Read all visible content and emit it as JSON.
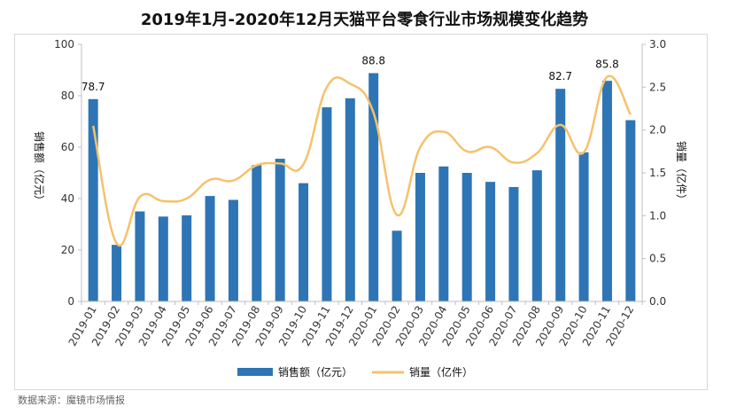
{
  "source_note": "数据来源：魔镜市场情报",
  "chart_data": {
    "type": "bar+line",
    "title": "2019年1月-2020年12月天猫平台零食行业市场规模变化趋势",
    "categories": [
      "2019-01",
      "2019-02",
      "2019-03",
      "2019-04",
      "2019-05",
      "2019-06",
      "2019-07",
      "2019-08",
      "2019-09",
      "2019-10",
      "2019-11",
      "2019-12",
      "2020-01",
      "2020-02",
      "2020-03",
      "2020-04",
      "2020-05",
      "2020-06",
      "2020-07",
      "2020-08",
      "2020-09",
      "2020-10",
      "2020-11",
      "2020-12"
    ],
    "series": [
      {
        "name": "销售额（亿元）",
        "type": "bar",
        "axis": "left",
        "color": "#2e75b6",
        "values": [
          78.7,
          22,
          35,
          33,
          33.5,
          41,
          39.5,
          53,
          55.5,
          46,
          75.5,
          79,
          88.8,
          27.5,
          50,
          52.5,
          50,
          46.5,
          44.5,
          51,
          82.7,
          58,
          85.8,
          70.5
        ]
      },
      {
        "name": "销量（亿件）",
        "type": "line",
        "axis": "right",
        "color": "#f5c26b",
        "values": [
          2.05,
          0.68,
          1.22,
          1.17,
          1.2,
          1.42,
          1.41,
          1.59,
          1.61,
          1.6,
          2.5,
          2.54,
          2.2,
          1.01,
          1.8,
          1.98,
          1.75,
          1.8,
          1.62,
          1.73,
          2.06,
          1.74,
          2.62,
          2.18
        ]
      }
    ],
    "data_labels": [
      {
        "index": 0,
        "text": "78.7"
      },
      {
        "index": 12,
        "text": "88.8"
      },
      {
        "index": 20,
        "text": "82.7"
      },
      {
        "index": 22,
        "text": "85.8"
      }
    ],
    "y_left": {
      "title": "销售额（亿元）",
      "min": 0,
      "max": 100,
      "ticks": [
        "0",
        "20",
        "40",
        "60",
        "80",
        "100"
      ]
    },
    "y_right": {
      "title": "销量（亿件）",
      "min": 0,
      "max": 3.0,
      "ticks": [
        "0.0",
        "0.5",
        "1.0",
        "1.5",
        "2.0",
        "2.5",
        "3.0"
      ]
    },
    "legend": [
      "销售额（亿元）",
      "销量（亿件）"
    ],
    "legend_position": "bottom",
    "grid": false
  }
}
